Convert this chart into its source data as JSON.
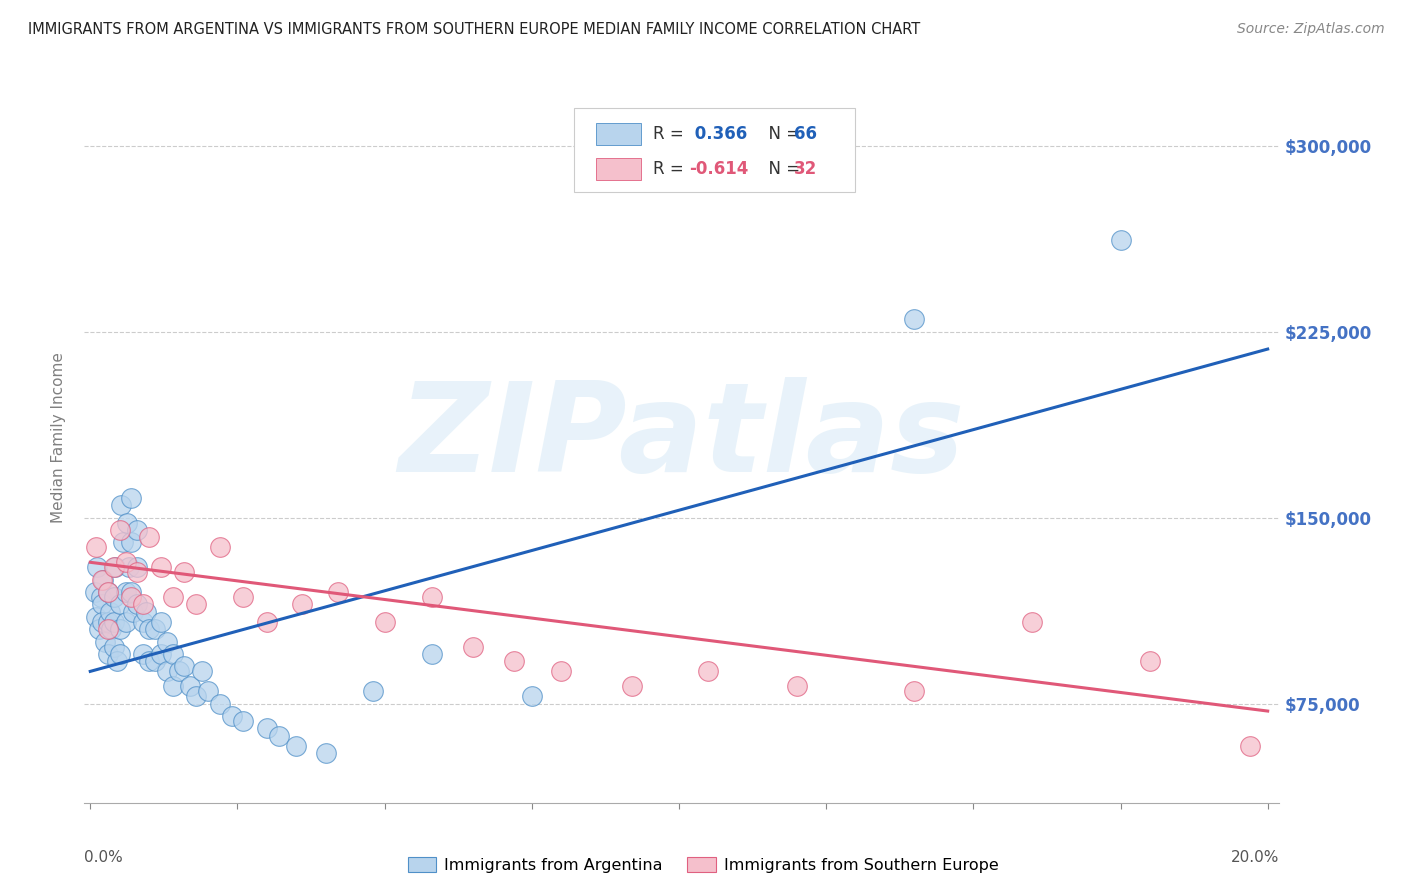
{
  "title": "IMMIGRANTS FROM ARGENTINA VS IMMIGRANTS FROM SOUTHERN EUROPE MEDIAN FAMILY INCOME CORRELATION CHART",
  "source": "Source: ZipAtlas.com",
  "xlim": [
    -0.001,
    0.202
  ],
  "ylim": [
    35000,
    330000
  ],
  "ylabel": "Median Family Income",
  "ytick_positions": [
    75000,
    150000,
    225000,
    300000
  ],
  "ytick_labels_right": [
    "$75,000",
    "$150,000",
    "$225,000",
    "$300,000"
  ],
  "xtick_left_label": "0.0%",
  "xtick_right_label": "20.0%",
  "watermark": "ZIPatlas",
  "blue_fill": "#b8d4ed",
  "blue_edge": "#5090c8",
  "pink_fill": "#f5c0cc",
  "pink_edge": "#e06080",
  "blue_line_color": "#2060b8",
  "pink_line_color": "#e05878",
  "right_label_color": "#4472c4",
  "grid_color": "#cccccc",
  "axis_label_color": "#808080",
  "title_color": "#222222",
  "source_color": "#888888",
  "legend_label1": "Immigrants from Argentina",
  "legend_label2": "Immigrants from Southern Europe",
  "argentina_trend_x": [
    0.0,
    0.2
  ],
  "argentina_trend_y": [
    88000,
    218000
  ],
  "s_europe_trend_x": [
    0.0,
    0.2
  ],
  "s_europe_trend_y": [
    132000,
    72000
  ],
  "argentina_x": [
    0.0008,
    0.001,
    0.0012,
    0.0015,
    0.0018,
    0.002,
    0.002,
    0.0022,
    0.0025,
    0.003,
    0.003,
    0.003,
    0.0033,
    0.0035,
    0.004,
    0.004,
    0.004,
    0.0042,
    0.0045,
    0.005,
    0.005,
    0.005,
    0.0052,
    0.0055,
    0.006,
    0.006,
    0.0062,
    0.0065,
    0.007,
    0.007,
    0.007,
    0.0072,
    0.008,
    0.008,
    0.008,
    0.009,
    0.009,
    0.0095,
    0.01,
    0.01,
    0.011,
    0.011,
    0.012,
    0.012,
    0.013,
    0.013,
    0.014,
    0.014,
    0.015,
    0.016,
    0.017,
    0.018,
    0.019,
    0.02,
    0.022,
    0.024,
    0.026,
    0.03,
    0.032,
    0.035,
    0.04,
    0.048,
    0.058,
    0.075,
    0.14,
    0.175
  ],
  "argentina_y": [
    120000,
    110000,
    130000,
    105000,
    118000,
    115000,
    108000,
    125000,
    100000,
    120000,
    108000,
    95000,
    112000,
    105000,
    118000,
    108000,
    98000,
    130000,
    92000,
    115000,
    105000,
    95000,
    155000,
    140000,
    120000,
    108000,
    148000,
    130000,
    158000,
    140000,
    120000,
    112000,
    145000,
    130000,
    115000,
    108000,
    95000,
    112000,
    105000,
    92000,
    105000,
    92000,
    108000,
    95000,
    100000,
    88000,
    95000,
    82000,
    88000,
    90000,
    82000,
    78000,
    88000,
    80000,
    75000,
    70000,
    68000,
    65000,
    62000,
    58000,
    55000,
    80000,
    95000,
    78000,
    230000,
    262000
  ],
  "s_europe_x": [
    0.001,
    0.002,
    0.003,
    0.003,
    0.004,
    0.005,
    0.006,
    0.007,
    0.008,
    0.009,
    0.01,
    0.012,
    0.014,
    0.016,
    0.018,
    0.022,
    0.026,
    0.03,
    0.036,
    0.042,
    0.05,
    0.058,
    0.065,
    0.072,
    0.08,
    0.092,
    0.105,
    0.12,
    0.14,
    0.16,
    0.18,
    0.197
  ],
  "s_europe_y": [
    138000,
    125000,
    120000,
    105000,
    130000,
    145000,
    132000,
    118000,
    128000,
    115000,
    142000,
    130000,
    118000,
    128000,
    115000,
    138000,
    118000,
    108000,
    115000,
    120000,
    108000,
    118000,
    98000,
    92000,
    88000,
    82000,
    88000,
    82000,
    80000,
    108000,
    92000,
    58000
  ],
  "dot_size": 200
}
